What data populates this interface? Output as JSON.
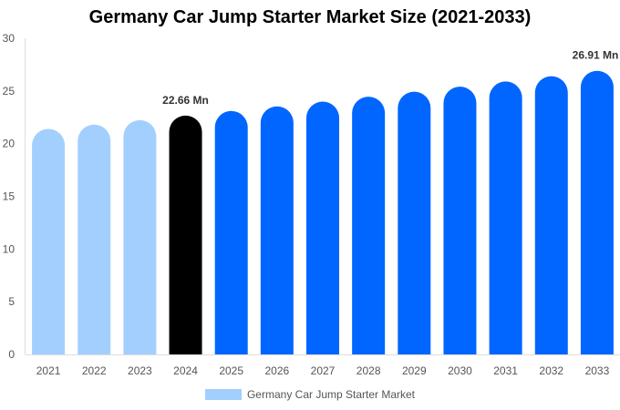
{
  "chart_data": {
    "type": "bar",
    "title": "Germany Car Jump Starter Market Size (2021-2033)",
    "categories": [
      "2021",
      "2022",
      "2023",
      "2024",
      "2025",
      "2026",
      "2027",
      "2028",
      "2029",
      "2030",
      "2031",
      "2032",
      "2033"
    ],
    "series": [
      {
        "name": "Germany Car Jump Starter Market",
        "values": [
          21.4,
          21.81,
          22.23,
          22.66,
          23.1,
          23.54,
          23.99,
          24.46,
          24.93,
          25.41,
          25.9,
          26.4,
          26.91
        ]
      }
    ],
    "data_labels": [
      {
        "category": "2024",
        "text": "22.66 Mn"
      },
      {
        "category": "2033",
        "text": "26.91 Mn"
      }
    ],
    "ylim": [
      0,
      30
    ],
    "yticks": [
      0,
      5,
      10,
      15,
      20,
      25,
      30
    ],
    "xlabel": "",
    "ylabel": "",
    "grid": false,
    "legend": "bottom",
    "colors": {
      "historical": "#a3cfff",
      "base_year": "#000000",
      "forecast": "#0066ff"
    },
    "color_by_category": [
      "historical",
      "historical",
      "historical",
      "base_year",
      "forecast",
      "forecast",
      "forecast",
      "forecast",
      "forecast",
      "forecast",
      "forecast",
      "forecast",
      "forecast"
    ]
  }
}
